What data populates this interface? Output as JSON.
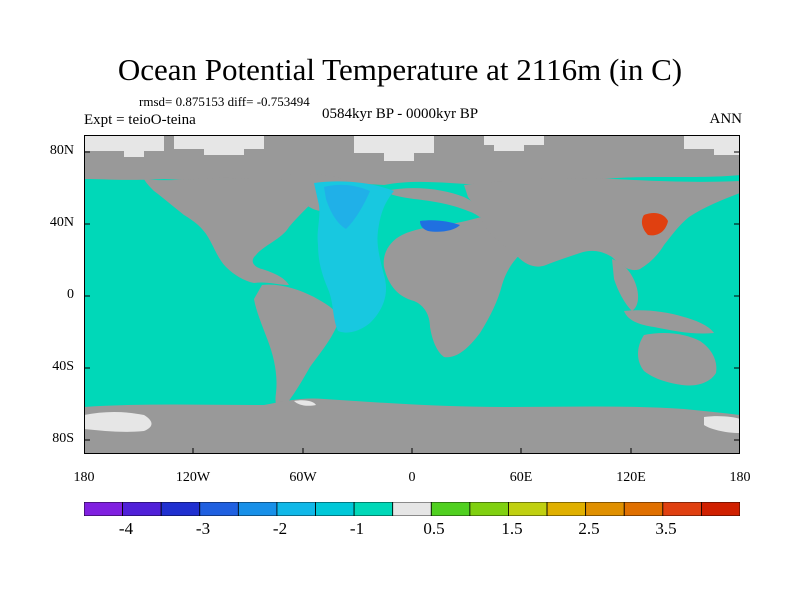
{
  "title": "Ocean Potential Temperature at 2116m (in C)",
  "stats_line": "rmsd= 0.875153 diff= -0.753494",
  "experiment": "Expt = teioO-teina",
  "period": "0584kyr BP - 0000kyr BP",
  "season": "ANN",
  "lat_ticks": [
    "80N",
    "40N",
    "0",
    "40S",
    "80S"
  ],
  "lon_ticks": [
    "180",
    "120W",
    "60W",
    "0",
    "60E",
    "120E",
    "180"
  ],
  "colors": {
    "ocean_main": "#00d8b8",
    "land": "#999999",
    "missing": "#e6e6e6",
    "atlantic_cool": "#18c8e0",
    "atlantic_cooler": "#20b0e8",
    "med": "#2070e0",
    "japan_sea": "#e04010"
  },
  "colorbar": {
    "colors": [
      "#8020e0",
      "#5020d8",
      "#2030d0",
      "#2060e0",
      "#1890e8",
      "#10b8e8",
      "#00c8d8",
      "#00d8b8",
      "#e6e6e6",
      "#50d020",
      "#80d010",
      "#c0d010",
      "#e0b000",
      "#e09000",
      "#e07000",
      "#e04010",
      "#d02000"
    ],
    "labels": [
      "-4",
      "-3",
      "-2",
      "-1",
      "0.5",
      "1.5",
      "2.5",
      "3.5"
    ]
  }
}
